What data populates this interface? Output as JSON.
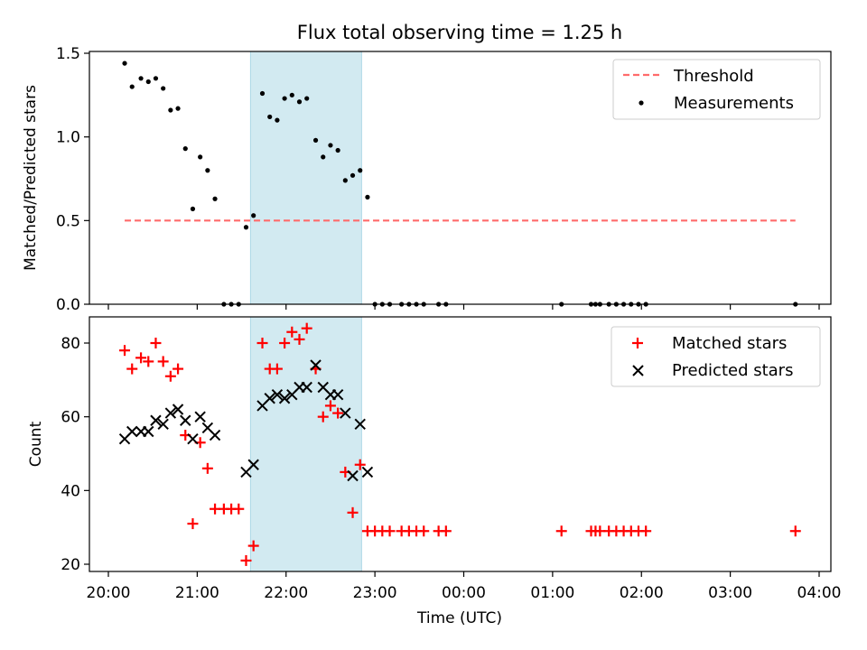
{
  "chart_data": [
    {
      "type": "scatter",
      "title": "Flux total observing time = 1.25 h",
      "xlabel": "",
      "ylabel": "Matched/Predicted stars",
      "xlim": [
        "20:00",
        "04:00"
      ],
      "ylim": [
        0,
        1.5
      ],
      "yticks": [
        "0.0",
        "0.5",
        "1.0",
        "1.5"
      ],
      "shaded_interval": [
        "21:36",
        "22:51"
      ],
      "shade_color": "#add8e6",
      "legend_position": "top-right",
      "threshold": {
        "name": "Threshold",
        "y": 0.5,
        "x_range": [
          "20:11",
          "03:44"
        ],
        "color": "#ff6b6b",
        "style": "dashed"
      },
      "series": [
        {
          "name": "Measurements",
          "marker": "dot",
          "color": "#000000",
          "points": [
            [
              "20:11",
              1.44
            ],
            [
              "20:16",
              1.3
            ],
            [
              "20:22",
              1.35
            ],
            [
              "20:27",
              1.33
            ],
            [
              "20:32",
              1.35
            ],
            [
              "20:37",
              1.29
            ],
            [
              "20:42",
              1.16
            ],
            [
              "20:47",
              1.17
            ],
            [
              "20:52",
              0.93
            ],
            [
              "20:57",
              0.57
            ],
            [
              "21:02",
              0.88
            ],
            [
              "21:07",
              0.8
            ],
            [
              "21:12",
              0.63
            ],
            [
              "21:18",
              0.0
            ],
            [
              "21:23",
              0.0
            ],
            [
              "21:28",
              0.0
            ],
            [
              "21:33",
              0.46
            ],
            [
              "21:38",
              0.53
            ],
            [
              "21:44",
              1.26
            ],
            [
              "21:49",
              1.12
            ],
            [
              "21:54",
              1.1
            ],
            [
              "21:59",
              1.23
            ],
            [
              "22:04",
              1.25
            ],
            [
              "22:09",
              1.21
            ],
            [
              "22:14",
              1.23
            ],
            [
              "22:20",
              0.98
            ],
            [
              "22:25",
              0.88
            ],
            [
              "22:30",
              0.95
            ],
            [
              "22:35",
              0.92
            ],
            [
              "22:40",
              0.74
            ],
            [
              "22:45",
              0.77
            ],
            [
              "22:50",
              0.8
            ],
            [
              "22:55",
              0.64
            ],
            [
              "23:00",
              0.0
            ],
            [
              "23:05",
              0.0
            ],
            [
              "23:10",
              0.0
            ],
            [
              "23:18",
              0.0
            ],
            [
              "23:23",
              0.0
            ],
            [
              "23:28",
              0.0
            ],
            [
              "23:33",
              0.0
            ],
            [
              "23:43",
              0.0
            ],
            [
              "23:48",
              0.0
            ],
            [
              "01:06",
              0.0
            ],
            [
              "01:26",
              0.0
            ],
            [
              "01:29",
              0.0
            ],
            [
              "01:32",
              0.0
            ],
            [
              "01:38",
              0.0
            ],
            [
              "01:43",
              0.0
            ],
            [
              "01:48",
              0.0
            ],
            [
              "01:53",
              0.0
            ],
            [
              "01:58",
              0.0
            ],
            [
              "02:03",
              0.0
            ],
            [
              "03:44",
              0.0
            ]
          ]
        }
      ]
    },
    {
      "type": "scatter",
      "title": "",
      "xlabel": "Time (UTC)",
      "ylabel": "Count",
      "xlim": [
        "20:00",
        "04:00"
      ],
      "ylim": [
        20,
        85
      ],
      "xticks": [
        "20:00",
        "21:00",
        "22:00",
        "23:00",
        "00:00",
        "01:00",
        "02:00",
        "03:00",
        "04:00"
      ],
      "yticks": [
        "20",
        "40",
        "60",
        "80"
      ],
      "shaded_interval": [
        "21:36",
        "22:51"
      ],
      "shade_color": "#add8e6",
      "legend_position": "top-right",
      "series": [
        {
          "name": "Matched stars",
          "marker": "plus",
          "color": "#ff0000",
          "points": [
            [
              "20:11",
              78
            ],
            [
              "20:16",
              73
            ],
            [
              "20:22",
              76
            ],
            [
              "20:27",
              75
            ],
            [
              "20:32",
              80
            ],
            [
              "20:37",
              75
            ],
            [
              "20:42",
              71
            ],
            [
              "20:47",
              73
            ],
            [
              "20:52",
              55
            ],
            [
              "20:57",
              31
            ],
            [
              "21:02",
              53
            ],
            [
              "21:07",
              46
            ],
            [
              "21:12",
              35
            ],
            [
              "21:18",
              35
            ],
            [
              "21:23",
              35
            ],
            [
              "21:28",
              35
            ],
            [
              "21:33",
              21
            ],
            [
              "21:38",
              25
            ],
            [
              "21:44",
              80
            ],
            [
              "21:49",
              73
            ],
            [
              "21:54",
              73
            ],
            [
              "21:59",
              80
            ],
            [
              "22:04",
              83
            ],
            [
              "22:09",
              81
            ],
            [
              "22:14",
              84
            ],
            [
              "22:20",
              73
            ],
            [
              "22:25",
              60
            ],
            [
              "22:30",
              63
            ],
            [
              "22:35",
              61
            ],
            [
              "22:40",
              45
            ],
            [
              "22:45",
              34
            ],
            [
              "22:50",
              47
            ],
            [
              "22:55",
              29
            ],
            [
              "23:00",
              29
            ],
            [
              "23:05",
              29
            ],
            [
              "23:10",
              29
            ],
            [
              "23:18",
              29
            ],
            [
              "23:23",
              29
            ],
            [
              "23:28",
              29
            ],
            [
              "23:33",
              29
            ],
            [
              "23:43",
              29
            ],
            [
              "23:48",
              29
            ],
            [
              "01:06",
              29
            ],
            [
              "01:26",
              29
            ],
            [
              "01:29",
              29
            ],
            [
              "01:32",
              29
            ],
            [
              "01:38",
              29
            ],
            [
              "01:43",
              29
            ],
            [
              "01:48",
              29
            ],
            [
              "01:53",
              29
            ],
            [
              "01:58",
              29
            ],
            [
              "02:03",
              29
            ],
            [
              "03:44",
              29
            ]
          ]
        },
        {
          "name": "Predicted stars",
          "marker": "x",
          "color": "#000000",
          "points": [
            [
              "20:11",
              54
            ],
            [
              "20:16",
              56
            ],
            [
              "20:22",
              56
            ],
            [
              "20:27",
              56
            ],
            [
              "20:32",
              59
            ],
            [
              "20:37",
              58
            ],
            [
              "20:42",
              61
            ],
            [
              "20:47",
              62
            ],
            [
              "20:52",
              59
            ],
            [
              "20:57",
              54
            ],
            [
              "21:02",
              60
            ],
            [
              "21:07",
              57
            ],
            [
              "21:12",
              55
            ],
            [
              "21:33",
              45
            ],
            [
              "21:38",
              47
            ],
            [
              "21:44",
              63
            ],
            [
              "21:49",
              65
            ],
            [
              "21:54",
              66
            ],
            [
              "21:59",
              65
            ],
            [
              "22:04",
              66
            ],
            [
              "22:09",
              68
            ],
            [
              "22:14",
              68
            ],
            [
              "22:20",
              74
            ],
            [
              "22:25",
              68
            ],
            [
              "22:30",
              66
            ],
            [
              "22:35",
              66
            ],
            [
              "22:40",
              61
            ],
            [
              "22:45",
              44
            ],
            [
              "22:50",
              58
            ],
            [
              "22:55",
              45
            ]
          ]
        }
      ]
    }
  ]
}
